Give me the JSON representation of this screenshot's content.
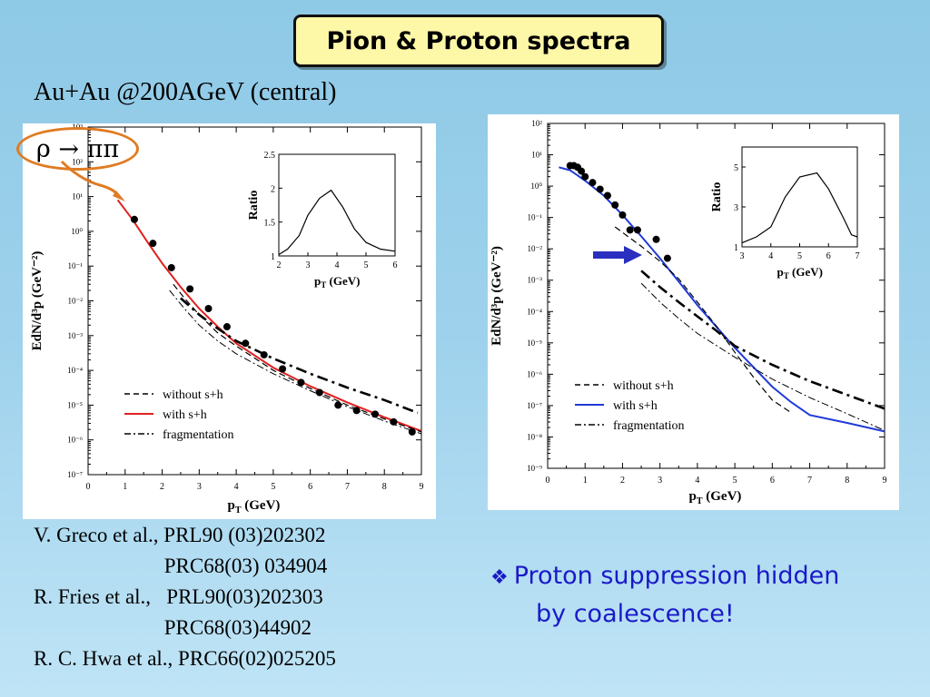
{
  "title": "Pion & Proton spectra",
  "subtitle": "Au+Au @200AGeV (central)",
  "annotation": "ρ → ππ",
  "references": [
    "V. Greco et al., PRL90 (03)202302",
    "                         PRC68(03) 034904",
    "R. Fries et al.,   PRL90(03)202303",
    "                         PRC68(03)44902",
    "R. C. Hwa et al., PRC66(02)025205"
  ],
  "bullet": {
    "symbol": "❖",
    "line1": "Proton suppression hidden",
    "line2": "by coalescence!"
  },
  "colors": {
    "accent_blue": "#1a1ac8",
    "orange": "#e07b22",
    "title_bg": "#fdf7a8"
  },
  "chart_data": [
    {
      "type": "line",
      "xlabel": "p",
      "xlabel_sub": "T",
      "xlabel_unit": " (GeV)",
      "ylabel": "EdN/d³p  (GeV⁻²)",
      "log_y": true,
      "xlim": [
        0,
        9
      ],
      "ylim_exp": [
        -7,
        3
      ],
      "x_ticks": [
        "0",
        "1",
        "2",
        "3",
        "4",
        "5",
        "6",
        "7",
        "8",
        "9"
      ],
      "legend": [
        {
          "name": "without s+h",
          "style": "dashed"
        },
        {
          "name": "with s+h",
          "style": "solid",
          "color": "#e02020"
        },
        {
          "name": "fragmentation",
          "style": "dashdot"
        }
      ],
      "series": [
        {
          "name": "with s+h",
          "x": [
            0.8,
            1.2,
            1.6,
            2.0,
            2.5,
            3.0,
            3.5,
            4.0,
            5.0,
            6.0,
            7.0,
            8.0,
            9.0
          ],
          "y": [
            8,
            2.2,
            0.5,
            0.12,
            0.025,
            0.006,
            0.0018,
            0.0006,
            0.00012,
            3.5e-05,
            1.2e-05,
            4.5e-06,
            1.8e-06
          ]
        },
        {
          "name": "without s+h",
          "x": [
            2.3,
            2.6,
            3.0,
            3.5,
            4.0,
            5.0,
            6.0,
            7.0,
            8.0,
            9.0
          ],
          "y": [
            0.03,
            0.012,
            0.004,
            0.0012,
            0.0005,
            0.0001,
            3e-05,
            1e-05,
            4e-06,
            1.7e-06
          ]
        },
        {
          "name": "s+h dashdot",
          "x": [
            2.5,
            3.0,
            3.5,
            4.0,
            5.0,
            6.0,
            7.0,
            8.0,
            8.9
          ],
          "y": [
            0.012,
            0.004,
            0.0016,
            0.0007,
            0.00022,
            8e-05,
            3.2e-05,
            1.4e-05,
            6e-06
          ]
        },
        {
          "name": "fragmentation",
          "x": [
            2.2,
            2.6,
            3.0,
            3.5,
            4.0,
            5.0,
            6.0,
            7.0,
            8.0,
            9.0
          ],
          "y": [
            0.02,
            0.006,
            0.002,
            0.0007,
            0.0003,
            8e-05,
            2.6e-05,
            9e-06,
            3.5e-06,
            1.5e-06
          ]
        },
        {
          "name": "data",
          "x": [
            1.25,
            1.75,
            2.25,
            2.75,
            3.25,
            3.75,
            4.25,
            4.75,
            5.25,
            5.75,
            6.25,
            6.75,
            7.25,
            7.75,
            8.25,
            8.75
          ],
          "y": [
            2.2,
            0.45,
            0.09,
            0.022,
            0.006,
            0.0018,
            0.0006,
            0.00028,
            0.00011,
            4.5e-05,
            2.3e-05,
            1e-05,
            7e-06,
            5.5e-06,
            3.3e-06,
            1.7e-06
          ]
        }
      ],
      "inset": {
        "xlabel": "p",
        "xlabel_sub": "T",
        "xlabel_unit": " (GeV)",
        "ylabel": "Ratio",
        "xlim": [
          2,
          6
        ],
        "ylim": [
          1,
          2.5
        ],
        "x_ticks": [
          "2",
          "3",
          "4",
          "5",
          "6"
        ],
        "y_ticks": [
          "1",
          "1.5",
          "2",
          "2.5"
        ],
        "x": [
          2.0,
          2.3,
          2.7,
          3.0,
          3.4,
          3.8,
          4.2,
          4.6,
          5.0,
          5.5,
          6.0
        ],
        "y": [
          1.02,
          1.1,
          1.3,
          1.6,
          1.85,
          1.97,
          1.72,
          1.4,
          1.2,
          1.1,
          1.07
        ]
      }
    },
    {
      "type": "line",
      "xlabel": "p",
      "xlabel_sub": "T",
      "xlabel_unit": " (GeV)",
      "ylabel": "EdN/d³p   (GeV⁻²)",
      "log_y": true,
      "xlim": [
        0,
        9
      ],
      "ylim_exp": [
        -9,
        2
      ],
      "x_ticks": [
        "0",
        "1",
        "2",
        "3",
        "4",
        "5",
        "6",
        "7",
        "8",
        "9"
      ],
      "legend": [
        {
          "name": "without s+h",
          "style": "dashed"
        },
        {
          "name": "with s+h",
          "style": "solid",
          "color": "#1f3ad6"
        },
        {
          "name": "fragmentation",
          "style": "dashdot"
        }
      ],
      "series": [
        {
          "name": "with s+h",
          "x": [
            0.3,
            0.6,
            1.0,
            1.5,
            2.0,
            2.5,
            3.0,
            3.5,
            4.0,
            5.0,
            6.0,
            6.5,
            7.0,
            8.0,
            9.0
          ],
          "y": [
            4,
            3.2,
            1.5,
            0.5,
            0.12,
            0.025,
            0.005,
            0.0009,
            0.00016,
            7e-06,
            4e-07,
            1.3e-07,
            5e-08,
            2.8e-08,
            1.5e-08
          ]
        },
        {
          "name": "without s+h",
          "x": [
            1.8,
            2.5,
            3.0,
            3.5,
            4.0,
            4.5,
            5.0,
            5.5,
            6.0,
            6.5
          ],
          "y": [
            0.05,
            0.012,
            0.004,
            0.0011,
            0.0002,
            3.5e-05,
            5e-06,
            8e-07,
            1.5e-07,
            6e-08
          ]
        },
        {
          "name": "s+h dashdot",
          "x": [
            2.5,
            3.0,
            3.5,
            4.0,
            4.5,
            5.0,
            6.0,
            7.0,
            8.0,
            9.0
          ],
          "y": [
            0.002,
            0.0006,
            0.0002,
            7e-05,
            2.5e-05,
            8e-06,
            2e-06,
            6e-07,
            2.2e-07,
            8e-08
          ]
        },
        {
          "name": "fragmentation",
          "x": [
            2.5,
            3.0,
            3.5,
            4.0,
            5.0,
            6.0,
            7.0,
            8.0,
            9.0
          ],
          "y": [
            0.0008,
            0.0002,
            6e-05,
            2e-05,
            3.5e-06,
            7e-07,
            1.8e-07,
            5.5e-08,
            1.6e-08
          ]
        },
        {
          "name": "data",
          "x": [
            0.6,
            0.7,
            0.8,
            0.9,
            1.0,
            1.2,
            1.4,
            1.6,
            1.8,
            2.0,
            2.2,
            2.4,
            2.9,
            3.2
          ],
          "y": [
            4.5,
            4.5,
            4,
            3,
            2,
            1.3,
            0.8,
            0.5,
            0.25,
            0.12,
            0.04,
            0.04,
            0.02,
            0.005
          ]
        }
      ],
      "inset": {
        "xlabel": "p",
        "xlabel_sub": "T",
        "xlabel_unit": " (GeV)",
        "ylabel": "Ratio",
        "xlim": [
          3,
          7
        ],
        "ylim": [
          1,
          6
        ],
        "x_ticks": [
          "3",
          "4",
          "5",
          "6",
          "7"
        ],
        "y_ticks": [
          "1",
          "3",
          "5"
        ],
        "x": [
          3.0,
          3.5,
          4.0,
          4.5,
          5.0,
          5.6,
          6.0,
          6.5,
          6.8,
          7.0
        ],
        "y": [
          1.2,
          1.5,
          2.0,
          3.5,
          4.5,
          4.7,
          3.9,
          2.5,
          1.6,
          1.5
        ]
      }
    }
  ]
}
